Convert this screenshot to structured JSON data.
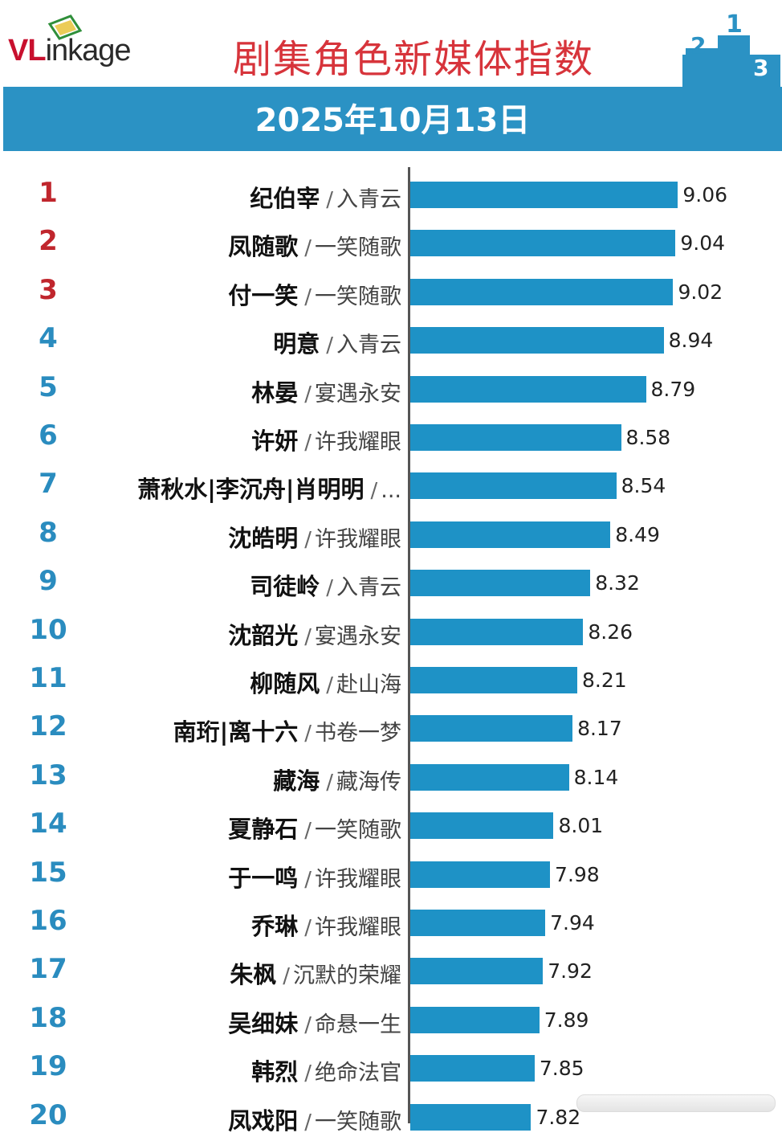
{
  "header": {
    "logo_prefix": "VL",
    "logo_suffix": "inkage",
    "title": "剧集角色新媒体指数",
    "date": "2025年10月13日"
  },
  "colors": {
    "bar": "#1e92c6",
    "banner": "#2b92c4",
    "title": "#d7343b",
    "rank_top": "#c0262d",
    "rank_rest": "#2a8cbf"
  },
  "chart_data": {
    "type": "bar",
    "orientation": "horizontal",
    "title": "剧集角色新媒体指数",
    "subtitle": "2025年10月13日",
    "xlim": [
      6.8,
      9.3
    ],
    "categories": [
      {
        "rank": "1",
        "name": "纪伯宰",
        "show": "入青云",
        "value": 9.06,
        "label": "9.06"
      },
      {
        "rank": "2",
        "name": "凤随歌",
        "show": "一笑随歌",
        "value": 9.04,
        "label": "9.04"
      },
      {
        "rank": "3",
        "name": "付一笑",
        "show": "一笑随歌",
        "value": 9.02,
        "label": "9.02"
      },
      {
        "rank": "4",
        "name": "明意",
        "show": "入青云",
        "value": 8.94,
        "label": "8.94"
      },
      {
        "rank": "5",
        "name": "林晏",
        "show": "宴遇永安",
        "value": 8.79,
        "label": "8.79"
      },
      {
        "rank": "6",
        "name": "许妍",
        "show": "许我耀眼",
        "value": 8.58,
        "label": "8.58"
      },
      {
        "rank": "7",
        "name": "萧秋水|李沉舟|肖明明",
        "show": "...",
        "value": 8.54,
        "label": "8.54"
      },
      {
        "rank": "8",
        "name": "沈皓明",
        "show": "许我耀眼",
        "value": 8.49,
        "label": "8.49"
      },
      {
        "rank": "9",
        "name": "司徒岭",
        "show": "入青云",
        "value": 8.32,
        "label": "8.32"
      },
      {
        "rank": "10",
        "name": "沈韶光",
        "show": "宴遇永安",
        "value": 8.26,
        "label": "8.26"
      },
      {
        "rank": "11",
        "name": "柳随风",
        "show": "赴山海",
        "value": 8.21,
        "label": "8.21"
      },
      {
        "rank": "12",
        "name": "南珩|离十六",
        "show": "书卷一梦",
        "value": 8.17,
        "label": "8.17"
      },
      {
        "rank": "13",
        "name": "藏海",
        "show": "藏海传",
        "value": 8.14,
        "label": "8.14"
      },
      {
        "rank": "14",
        "name": "夏静石",
        "show": "一笑随歌",
        "value": 8.01,
        "label": "8.01"
      },
      {
        "rank": "15",
        "name": "于一鸣",
        "show": "许我耀眼",
        "value": 7.98,
        "label": "7.98"
      },
      {
        "rank": "16",
        "name": "乔琳",
        "show": "许我耀眼",
        "value": 7.94,
        "label": "7.94"
      },
      {
        "rank": "17",
        "name": "朱枫",
        "show": "沉默的荣耀",
        "value": 7.92,
        "label": "7.92"
      },
      {
        "rank": "18",
        "name": "吴细妹",
        "show": "命悬一生",
        "value": 7.89,
        "label": "7.89"
      },
      {
        "rank": "19",
        "name": "韩烈",
        "show": "绝命法官",
        "value": 7.85,
        "label": "7.85"
      },
      {
        "rank": "20",
        "name": "凤戏阳",
        "show": "一笑随歌",
        "value": 7.82,
        "label": "7.82"
      }
    ]
  }
}
